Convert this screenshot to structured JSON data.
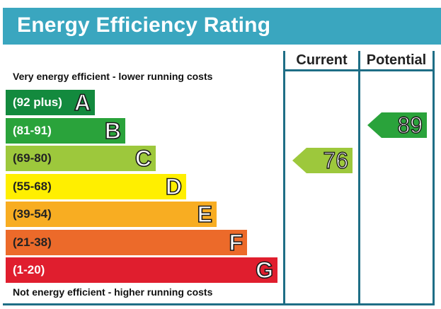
{
  "header": {
    "title": "Energy Efficiency Rating"
  },
  "columns": {
    "current": "Current",
    "potential": "Potential"
  },
  "captions": {
    "top": "Very energy efficient - lower running costs",
    "bottom": "Not energy efficient - higher running costs"
  },
  "chart_data": {
    "type": "bar",
    "title": "Energy Efficiency Rating",
    "categories": [
      "A",
      "B",
      "C",
      "D",
      "E",
      "F",
      "G"
    ],
    "ranges": [
      "(92 plus)",
      "(81-91)",
      "(69-80)",
      "(55-68)",
      "(39-54)",
      "(21-38)",
      "(1-20)"
    ],
    "colors": [
      "#138a3e",
      "#2aa33b",
      "#9dc83c",
      "#ffef00",
      "#f8ad22",
      "#ec6a2a",
      "#e01e2e"
    ],
    "range_text_colors": [
      "#ffffff",
      "#ffffff",
      "#222222",
      "#222222",
      "#222222",
      "#222222",
      "#ffffff"
    ],
    "current": {
      "value": 76,
      "band": "C",
      "color": "#9dc83c"
    },
    "potential": {
      "value": 89,
      "band": "B",
      "color": "#2aa33b"
    }
  }
}
